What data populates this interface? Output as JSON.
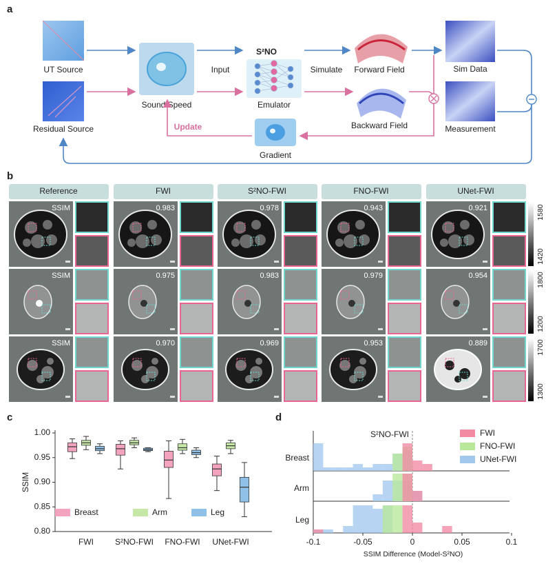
{
  "panel_labels": [
    "a",
    "b",
    "c",
    "d"
  ],
  "diagram": {
    "ut_source": "UT Source",
    "residual_source": "Residual Source",
    "sound_speed": "Sound Speed",
    "input": "Input",
    "model": "S²NO",
    "emulator": "Emulator",
    "simulate": "Simulate",
    "forward_field": "Forward Field",
    "backward_field": "Backward Field",
    "sim_data": "Sim Data",
    "measurement": "Measurement",
    "update": "Update",
    "gradient": "Gradient"
  },
  "reconstructions": {
    "columns": [
      "Reference",
      "FWI",
      "S²NO-FWI",
      "FNO-FWI",
      "UNet-FWI"
    ],
    "rows": [
      {
        "cells": [
          "SSIM",
          "0.983",
          "0.978",
          "0.943",
          "0.921"
        ],
        "colorbar": [
          1580,
          1420
        ]
      },
      {
        "cells": [
          "SSIM",
          "0.975",
          "0.983",
          "0.979",
          "0.954"
        ],
        "colorbar": [
          1800,
          1200
        ]
      },
      {
        "cells": [
          "SSIM",
          "0.970",
          "0.969",
          "0.953",
          "0.889"
        ],
        "colorbar": [
          1700,
          1300
        ]
      }
    ]
  },
  "chart_data": [
    {
      "type": "box",
      "ylabel": "SSIM",
      "categories": [
        "FWI",
        "S²NO-FWI",
        "FNO-FWI",
        "UNet-FWI"
      ],
      "ylim": [
        0.8,
        1.0
      ],
      "yticks": [
        {
          "value": 1.0,
          "label": "1.00"
        },
        0.95,
        {
          "value": 0.9,
          "label": "0.90"
        },
        0.85,
        {
          "value": 0.8,
          "label": "0.80"
        }
      ],
      "series": [
        {
          "name": "Breast",
          "color": "#f4a3bf",
          "min": [
            0.948,
            0.927,
            0.867,
            0.883
          ],
          "q1": [
            0.962,
            0.955,
            0.93,
            0.913
          ],
          "median": [
            0.972,
            0.968,
            0.945,
            0.927
          ],
          "q3": [
            0.98,
            0.977,
            0.963,
            0.937
          ],
          "max": [
            0.988,
            0.984,
            0.984,
            0.953
          ]
        },
        {
          "name": "Arm",
          "color": "#c5e8a6",
          "min": [
            0.966,
            0.97,
            0.958,
            0.958
          ],
          "q1": [
            0.975,
            0.976,
            0.965,
            0.968
          ],
          "median": [
            0.98,
            0.98,
            0.97,
            0.974
          ],
          "q3": [
            0.985,
            0.985,
            0.978,
            0.98
          ],
          "max": [
            0.993,
            0.99,
            0.987,
            0.985
          ]
        },
        {
          "name": "Leg",
          "color": "#8fc0e8",
          "min": [
            0.958,
            0.962,
            0.95,
            0.83
          ],
          "q1": [
            0.964,
            0.964,
            0.956,
            0.86
          ],
          "median": [
            0.968,
            0.966,
            0.96,
            0.89
          ],
          "q3": [
            0.973,
            0.969,
            0.965,
            0.91
          ],
          "max": [
            0.978,
            0.97,
            0.97,
            0.94
          ]
        }
      ]
    },
    {
      "type": "histogram",
      "title": "S²NO-FWI",
      "xlabel": "SSIM Difference (Model-S²NO)",
      "groups": [
        "Breast",
        "Arm",
        "Leg"
      ],
      "bins": [
        -0.1,
        -0.09,
        -0.08,
        -0.07,
        -0.06,
        -0.05,
        -0.04,
        -0.03,
        -0.02,
        -0.01,
        0,
        0.01,
        0.02,
        0.03,
        0.04,
        0.05,
        0.06,
        0.07,
        0.08,
        0.09,
        0.1
      ],
      "xlim": [
        -0.1,
        0.1
      ],
      "xticks": [
        -0.1,
        -0.05,
        0,
        0.05,
        0.1
      ],
      "series": [
        {
          "name": "FWI",
          "color": "#f28aa3",
          "values": [
            [
              0,
              0,
              0,
              0,
              0,
              0,
              0,
              0,
              0,
              8,
              3,
              2,
              0,
              0,
              0,
              0,
              0,
              0,
              0,
              0
            ],
            [
              0,
              0,
              0,
              0,
              0,
              0,
              0,
              0,
              0,
              8,
              3,
              0,
              0,
              0,
              0,
              0,
              0,
              0,
              0,
              0
            ],
            [
              1,
              0,
              0,
              0,
              0,
              0,
              0,
              0,
              0,
              8,
              3,
              0,
              0,
              2,
              0,
              0,
              0,
              0,
              0,
              0
            ]
          ]
        },
        {
          "name": "FNO-FWI",
          "color": "#b9e89a",
          "values": [
            [
              0,
              0,
              0,
              0,
              0,
              0,
              0,
              0,
              5,
              7,
              0,
              0,
              0,
              0,
              0,
              0,
              0,
              0,
              0,
              0
            ],
            [
              0,
              0,
              0,
              0,
              0,
              0,
              0,
              0,
              8,
              8,
              0,
              0,
              0,
              0,
              0,
              0,
              0,
              0,
              0,
              0
            ],
            [
              0,
              0,
              0,
              0,
              0,
              0,
              0,
              8,
              8,
              0,
              0,
              0,
              0,
              0,
              0,
              0,
              0,
              0,
              0,
              0
            ]
          ]
        },
        {
          "name": "UNet-FWI",
          "color": "#a3c8ee",
          "values": [
            [
              8,
              1,
              1,
              1,
              2,
              1,
              2,
              2,
              5,
              6,
              0,
              0,
              0,
              0,
              0,
              0,
              0,
              0,
              0,
              0
            ],
            [
              0,
              0,
              0,
              0,
              0,
              0,
              2,
              6,
              6,
              6,
              3,
              0,
              0,
              0,
              0,
              0,
              0,
              0,
              0,
              0
            ],
            [
              1,
              1,
              0,
              2,
              8,
              8,
              7,
              8,
              0,
              0,
              0,
              0,
              0,
              0,
              0,
              0,
              0,
              0,
              0,
              0
            ]
          ]
        }
      ]
    }
  ]
}
